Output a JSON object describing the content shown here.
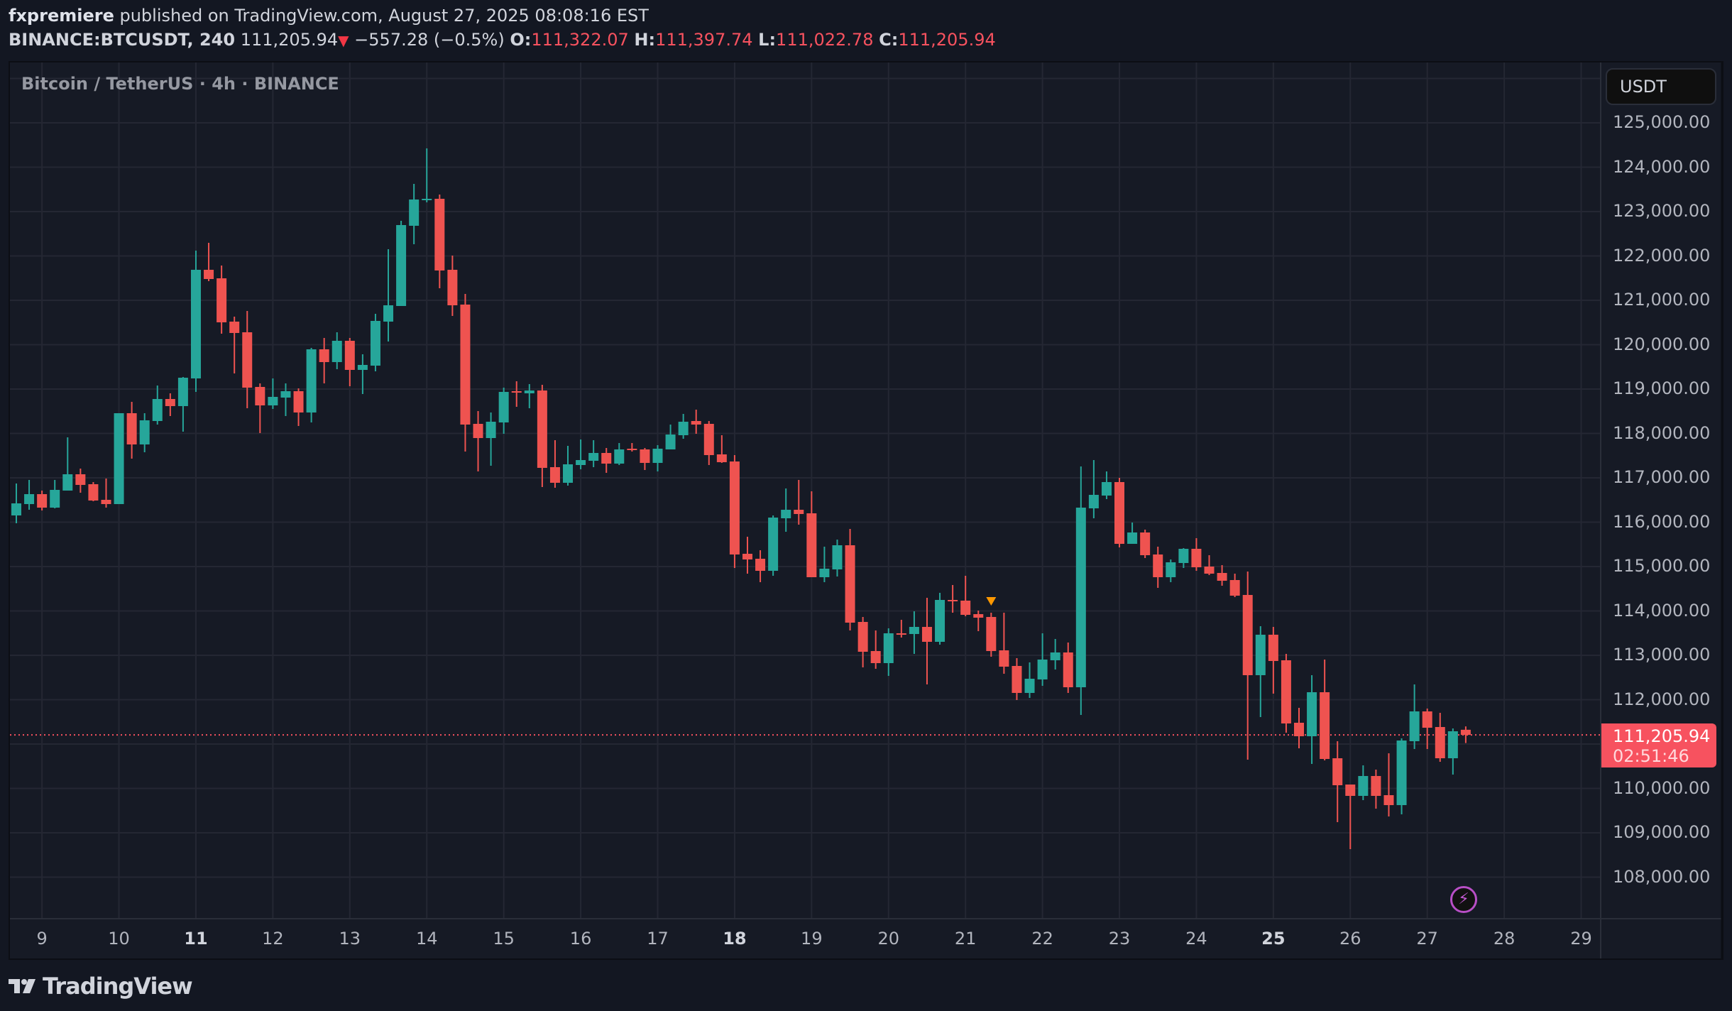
{
  "publish_line": {
    "author": "fxpremiere",
    "text": " published on TradingView.com, August 27, 2025 08:08:16 EST"
  },
  "quote_line": {
    "symbol": "BINANCE:BTCUSDT, 240",
    "last": "111,205.94",
    "direction_icon": "triangle-down",
    "change": "−557.28 (−0.5%)",
    "open_label": "O:",
    "open": "111,322.07",
    "high_label": "H:",
    "high": "111,397.74",
    "low_label": "L:",
    "low": "111,022.78",
    "close_label": "C:",
    "close": "111,205.94"
  },
  "legend": {
    "title": "Bitcoin / TetherUS · 4h · BINANCE"
  },
  "price_axis": {
    "currency_button": "USDT",
    "labels": [
      "125,000.00",
      "124,000.00",
      "123,000.00",
      "122,000.00",
      "121,000.00",
      "120,000.00",
      "119,000.00",
      "118,000.00",
      "117,000.00",
      "116,000.00",
      "115,000.00",
      "114,000.00",
      "113,000.00",
      "112,000.00",
      "110,000.00",
      "109,000.00",
      "108,000.00"
    ],
    "current_price_label": "111,205.94",
    "countdown": "02:51:46"
  },
  "time_axis": {
    "labels": [
      {
        "text": "9",
        "bold": false
      },
      {
        "text": "10",
        "bold": false
      },
      {
        "text": "11",
        "bold": true
      },
      {
        "text": "12",
        "bold": false
      },
      {
        "text": "13",
        "bold": false
      },
      {
        "text": "14",
        "bold": false
      },
      {
        "text": "15",
        "bold": false
      },
      {
        "text": "16",
        "bold": false
      },
      {
        "text": "17",
        "bold": false
      },
      {
        "text": "18",
        "bold": true
      },
      {
        "text": "19",
        "bold": false
      },
      {
        "text": "20",
        "bold": false
      },
      {
        "text": "21",
        "bold": false
      },
      {
        "text": "22",
        "bold": false
      },
      {
        "text": "23",
        "bold": false
      },
      {
        "text": "24",
        "bold": false
      },
      {
        "text": "25",
        "bold": true
      },
      {
        "text": "26",
        "bold": false
      },
      {
        "text": "27",
        "bold": false
      },
      {
        "text": "28",
        "bold": false
      },
      {
        "text": "29",
        "bold": false
      }
    ]
  },
  "icons": {
    "alert_marker": "triangle-down-orange",
    "lightning": "lightning-bolt-icon",
    "logo": "tradingview-logo"
  },
  "branding": {
    "logo_text": "TradingView"
  },
  "colors": {
    "up": "#26a69a",
    "down": "#ef5350",
    "background": "#161a25",
    "grid": "#242733",
    "current_price": "#f7525f",
    "marker": "#ff9800",
    "bolt": "#b84fc6"
  },
  "chart_data": {
    "type": "candlestick",
    "title": "Bitcoin / TetherUS · 4h · BINANCE",
    "symbol": "BINANCE:BTCUSDT",
    "interval": "240",
    "xlabel": "",
    "ylabel": "USDT",
    "ylim": [
      107300,
      126400
    ],
    "x_tick_labels": [
      "9",
      "10",
      "11",
      "12",
      "13",
      "14",
      "15",
      "16",
      "17",
      "18",
      "19",
      "20",
      "21",
      "22",
      "23",
      "24",
      "25",
      "26",
      "27",
      "28",
      "29"
    ],
    "y_tick_step": 1000,
    "grid": true,
    "current_price": 111205.94,
    "candles_per_day": 6,
    "first_candle_offset_days": -0.3333,
    "candles": [
      [
        116152,
        116872,
        115976,
        116424
      ],
      [
        116408,
        116952,
        116280,
        116632
      ],
      [
        116632,
        116712,
        116264,
        116328
      ],
      [
        116328,
        116952,
        116312,
        116728
      ],
      [
        116712,
        117912,
        116712,
        117080
      ],
      [
        117080,
        117208,
        116664,
        116840
      ],
      [
        116856,
        116904,
        116472,
        116488
      ],
      [
        116504,
        116984,
        116328,
        116408
      ],
      [
        116408,
        118456,
        116408,
        118456
      ],
      [
        118456,
        118712,
        117432,
        117752
      ],
      [
        117752,
        118456,
        117576,
        118296
      ],
      [
        118280,
        119080,
        118200,
        118776
      ],
      [
        118776,
        118904,
        118392,
        118616
      ],
      [
        118616,
        119272,
        118040,
        119256
      ],
      [
        119240,
        122120,
        118936,
        121688
      ],
      [
        121688,
        122296,
        121432,
        121480
      ],
      [
        121496,
        121784,
        120248,
        120504
      ],
      [
        120520,
        120632,
        119352,
        120264
      ],
      [
        120280,
        120760,
        118568,
        119032
      ],
      [
        119048,
        119128,
        118008,
        118632
      ],
      [
        118632,
        119240,
        118552,
        118824
      ],
      [
        118808,
        119128,
        118392,
        118952
      ],
      [
        118952,
        119016,
        118168,
        118472
      ],
      [
        118472,
        119928,
        118248,
        119896
      ],
      [
        119896,
        120152,
        119128,
        119608
      ],
      [
        119608,
        120280,
        119448,
        120088
      ],
      [
        120088,
        120152,
        119064,
        119432
      ],
      [
        119432,
        119784,
        118888,
        119544
      ],
      [
        119528,
        120696,
        119400,
        120536
      ],
      [
        120520,
        122152,
        120072,
        120888
      ],
      [
        120872,
        122792,
        120872,
        122696
      ],
      [
        122680,
        123624,
        122264,
        123272
      ],
      [
        123272,
        124424,
        123208,
        123288
      ],
      [
        123288,
        123384,
        121272,
        121672
      ],
      [
        121688,
        122008,
        120648,
        120888
      ],
      [
        120904,
        121144,
        117592,
        118200
      ],
      [
        118216,
        118504,
        117144,
        117896
      ],
      [
        117896,
        118472,
        117272,
        118264
      ],
      [
        118248,
        119032,
        117992,
        118936
      ],
      [
        118952,
        119176,
        118600,
        118936
      ],
      [
        118904,
        119112,
        118568,
        118968
      ],
      [
        118968,
        119096,
        116792,
        117224
      ],
      [
        117240,
        117848,
        116776,
        116888
      ],
      [
        116888,
        117720,
        116824,
        117304
      ],
      [
        117288,
        117864,
        117192,
        117400
      ],
      [
        117384,
        117848,
        117240,
        117560
      ],
      [
        117560,
        117672,
        117112,
        117320
      ],
      [
        117320,
        117784,
        117288,
        117640
      ],
      [
        117656,
        117784,
        117592,
        117624
      ],
      [
        117640,
        117672,
        117176,
        117336
      ],
      [
        117336,
        117736,
        117144,
        117656
      ],
      [
        117640,
        118200,
        117640,
        117976
      ],
      [
        117960,
        118440,
        117880,
        118264
      ],
      [
        118280,
        118536,
        117992,
        118200
      ],
      [
        118216,
        118280,
        117288,
        117512
      ],
      [
        117528,
        117960,
        117336,
        117352
      ],
      [
        117368,
        117512,
        114968,
        115272
      ],
      [
        115288,
        115672,
        114840,
        115160
      ],
      [
        115176,
        115368,
        114648,
        114904
      ],
      [
        114904,
        116152,
        114792,
        116104
      ],
      [
        116088,
        116760,
        115784,
        116280
      ],
      [
        116280,
        116952,
        115944,
        116184
      ],
      [
        116200,
        116696,
        114760,
        114760
      ],
      [
        114760,
        115448,
        114648,
        114952
      ],
      [
        114936,
        115608,
        114776,
        115480
      ],
      [
        115480,
        115848,
        113560,
        113736
      ],
      [
        113752,
        113864,
        112728,
        113080
      ],
      [
        113096,
        113560,
        112696,
        112824
      ],
      [
        112824,
        113608,
        112536,
        113496
      ],
      [
        113496,
        113800,
        113400,
        113480
      ],
      [
        113480,
        113992,
        113032,
        113640
      ],
      [
        113640,
        114296,
        112344,
        113304
      ],
      [
        113304,
        114408,
        113240,
        114248
      ],
      [
        114248,
        114584,
        113960,
        114232
      ],
      [
        114232,
        114792,
        113880,
        113912
      ],
      [
        113928,
        114008,
        113544,
        113848
      ],
      [
        113864,
        113960,
        112968,
        113096
      ],
      [
        113112,
        113960,
        112584,
        112744
      ],
      [
        112760,
        112936,
        111992,
        112152
      ],
      [
        112152,
        112840,
        112040,
        112472
      ],
      [
        112456,
        113496,
        112312,
        112904
      ],
      [
        112888,
        113368,
        112680,
        113064
      ],
      [
        113064,
        113288,
        112152,
        112280
      ],
      [
        112280,
        117256,
        111656,
        116328
      ],
      [
        116312,
        117400,
        116088,
        116616
      ],
      [
        116600,
        117144,
        116520,
        116904
      ],
      [
        116904,
        117000,
        115432,
        115512
      ],
      [
        115512,
        115992,
        115512,
        115768
      ],
      [
        115768,
        115832,
        115192,
        115256
      ],
      [
        115272,
        115448,
        114520,
        114760
      ],
      [
        114760,
        115160,
        114648,
        115096
      ],
      [
        115080,
        115416,
        114968,
        115400
      ],
      [
        115400,
        115640,
        114904,
        114984
      ],
      [
        115000,
        115256,
        114808,
        114840
      ],
      [
        114856,
        115032,
        114568,
        114680
      ],
      [
        114696,
        114840,
        114312,
        114344
      ],
      [
        114360,
        114888,
        110648,
        112552
      ],
      [
        112552,
        113656,
        111608,
        113464
      ],
      [
        113464,
        113640,
        112136,
        112872
      ],
      [
        112888,
        113032,
        111256,
        111464
      ],
      [
        111480,
        111816,
        110904,
        111176
      ],
      [
        111176,
        112552,
        110552,
        112168
      ],
      [
        112168,
        112904,
        110632,
        110664
      ],
      [
        110680,
        111064,
        109240,
        110072
      ],
      [
        110088,
        110088,
        108632,
        109832
      ],
      [
        109832,
        110520,
        109736,
        110280
      ],
      [
        110280,
        110424,
        109544,
        109832
      ],
      [
        109848,
        110792,
        109368,
        109624
      ],
      [
        109624,
        111128,
        109416,
        111080
      ],
      [
        111064,
        112344,
        110888,
        111736
      ],
      [
        111736,
        111800,
        110888,
        111368
      ],
      [
        111384,
        111704,
        110600,
        110680
      ],
      [
        110680,
        111352,
        110312,
        111288
      ],
      [
        111322.07,
        111397.74,
        111022.78,
        111205.94
      ]
    ],
    "candle_fields": [
      "open",
      "high",
      "low",
      "close"
    ],
    "annotations": [
      {
        "type": "alert-marker",
        "candle_index": 76,
        "shape": "triangle-down",
        "color": "#ff9800"
      },
      {
        "type": "current-price-line",
        "value": 111205.94,
        "style": "dotted",
        "color": "#f7525f"
      }
    ]
  }
}
